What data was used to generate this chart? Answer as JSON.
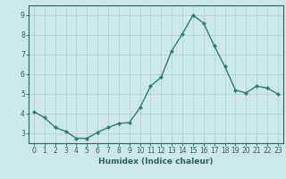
{
  "xlabel": "Humidex (Indice chaleur)",
  "ylabel": "",
  "x": [
    0,
    1,
    2,
    3,
    4,
    5,
    6,
    7,
    8,
    9,
    10,
    11,
    12,
    13,
    14,
    15,
    16,
    17,
    18,
    19,
    20,
    21,
    22,
    23
  ],
  "y": [
    4.1,
    3.8,
    3.3,
    3.1,
    2.75,
    2.75,
    3.05,
    3.3,
    3.5,
    3.55,
    4.3,
    5.4,
    5.85,
    7.2,
    8.05,
    9.0,
    8.6,
    7.45,
    6.4,
    5.2,
    5.05,
    5.4,
    5.3,
    5.0
  ],
  "line_color": "#2d7d6f",
  "marker": "D",
  "marker_size": 2.2,
  "line_width": 1.0,
  "background_color": "#cce8ea",
  "grid_color": "#aacfd2",
  "ylim": [
    2.5,
    9.5
  ],
  "xlim": [
    -0.5,
    23.5
  ],
  "yticks": [
    3,
    4,
    5,
    6,
    7,
    8,
    9
  ],
  "xticks": [
    0,
    1,
    2,
    3,
    4,
    5,
    6,
    7,
    8,
    9,
    10,
    11,
    12,
    13,
    14,
    15,
    16,
    17,
    18,
    19,
    20,
    21,
    22,
    23
  ],
  "tick_fontsize": 5.5,
  "xlabel_fontsize": 6.5,
  "tick_color": "#2d6060",
  "spine_color": "#2d6060"
}
